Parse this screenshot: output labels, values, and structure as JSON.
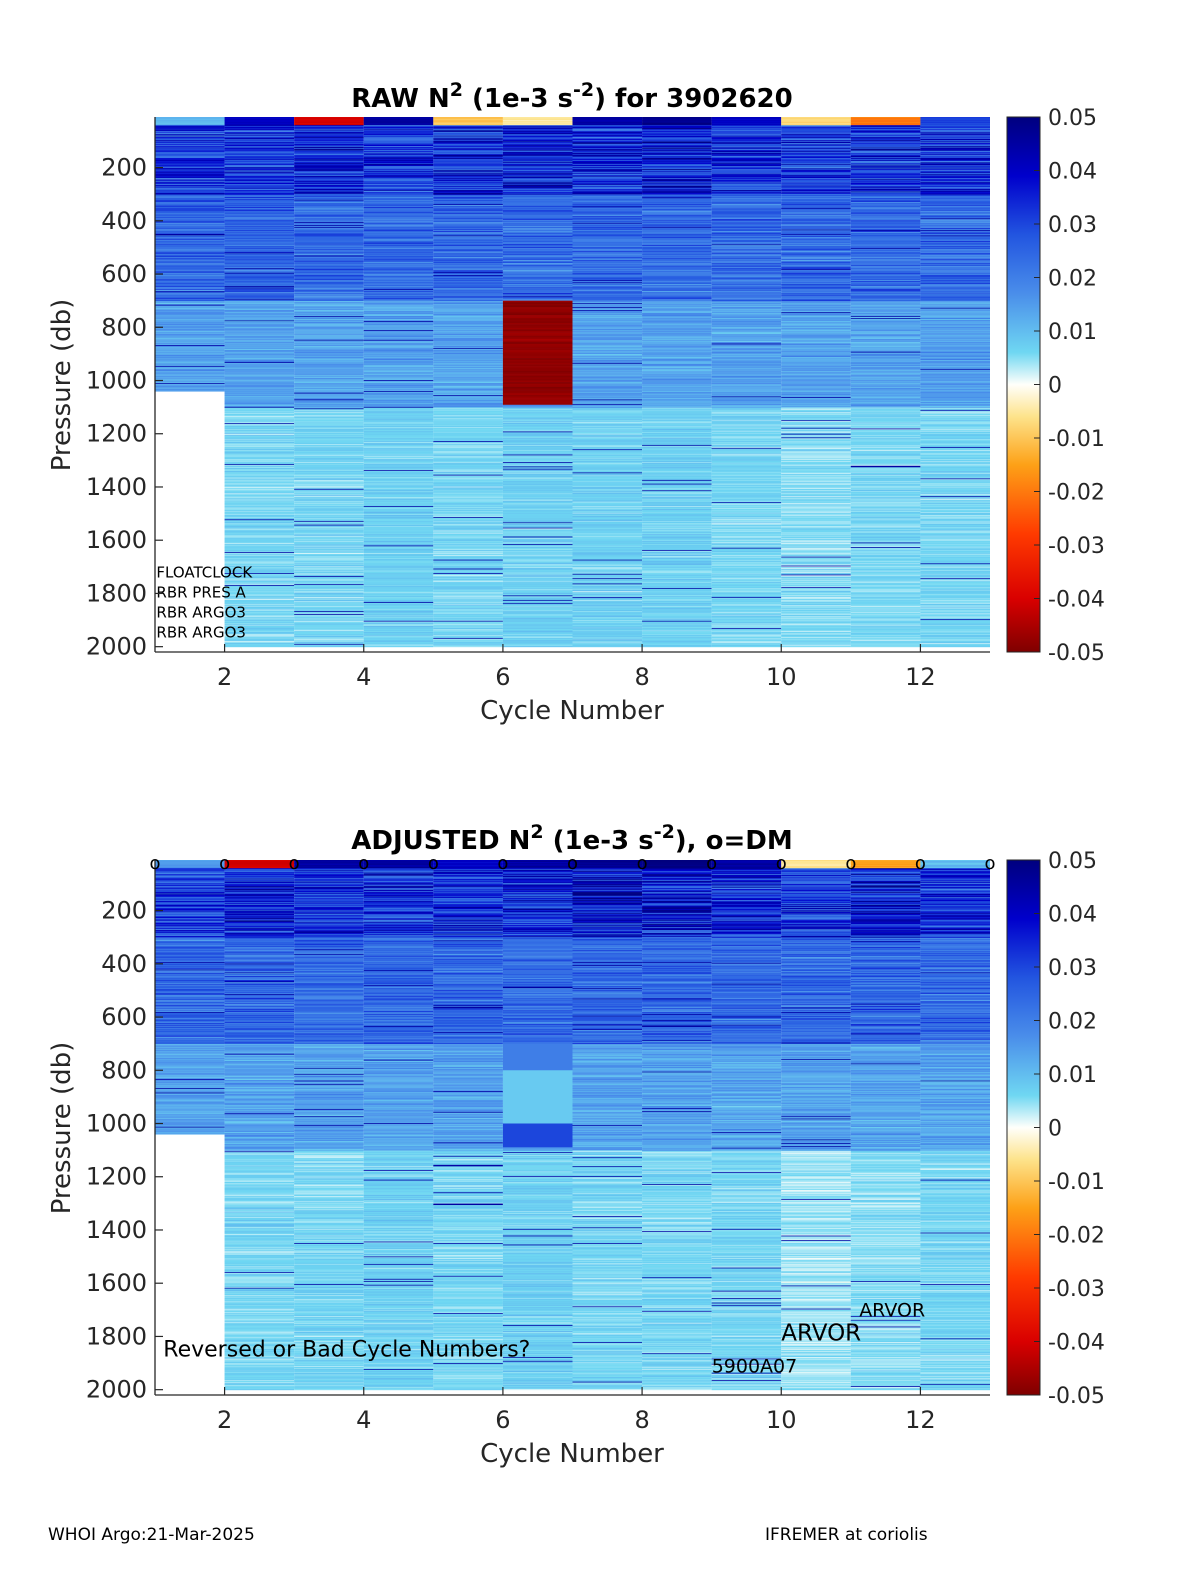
{
  "chart_data": [
    {
      "type": "heatmap",
      "title_parts": {
        "pre": "RAW N",
        "sup1": "2",
        "mid": " (1e-3 s",
        "sup2": "-2",
        "post": ") for 3902620"
      },
      "xlabel": "Cycle Number",
      "ylabel": "Pressure (db)",
      "xlim": [
        1,
        13
      ],
      "ylim": [
        2020,
        10
      ],
      "xticks": [
        "2",
        "4",
        "6",
        "8",
        "10",
        "12"
      ],
      "yticks": [
        "200",
        "400",
        "600",
        "800",
        "1000",
        "1200",
        "1400",
        "1600",
        "1800",
        "2000"
      ],
      "colorbar": {
        "min": -0.05,
        "max": 0.05,
        "ticks": [
          "0.05",
          "0.04",
          "0.03",
          "0.02",
          "0.01",
          "0",
          "-0.01",
          "-0.02",
          "-0.03",
          "-0.04",
          "-0.05"
        ]
      },
      "cycles": [
        {
          "cycle": 1,
          "max_pressure": 1040,
          "surface_value": 0.01,
          "near_surface_value": 0.045,
          "deep_value": 0.008
        },
        {
          "cycle": 2,
          "max_pressure": 2000,
          "surface_value": 0.04,
          "near_surface_value": 0.045,
          "deep_value": 0.006
        },
        {
          "cycle": 3,
          "max_pressure": 2000,
          "surface_value": -0.04,
          "near_surface_value": 0.048,
          "deep_value": 0.006
        },
        {
          "cycle": 4,
          "max_pressure": 2000,
          "surface_value": 0.045,
          "near_surface_value": 0.046,
          "deep_value": 0.007
        },
        {
          "cycle": 5,
          "max_pressure": 2000,
          "surface_value": -0.01,
          "near_surface_value": 0.048,
          "deep_value": 0.006
        },
        {
          "cycle": 6,
          "max_pressure": 2000,
          "surface_value": -0.005,
          "near_surface_value": 0.05,
          "deep_value": 0.007
        },
        {
          "cycle": 7,
          "max_pressure": 2000,
          "surface_value": 0.045,
          "near_surface_value": 0.048,
          "deep_value": 0.007
        },
        {
          "cycle": 8,
          "max_pressure": 2000,
          "surface_value": 0.048,
          "near_surface_value": 0.05,
          "deep_value": 0.007
        },
        {
          "cycle": 9,
          "max_pressure": 2000,
          "surface_value": 0.04,
          "near_surface_value": 0.046,
          "deep_value": 0.006
        },
        {
          "cycle": 10,
          "max_pressure": 2000,
          "surface_value": -0.008,
          "near_surface_value": 0.045,
          "deep_value": 0.005
        },
        {
          "cycle": 11,
          "max_pressure": 2000,
          "surface_value": -0.02,
          "near_surface_value": 0.048,
          "deep_value": 0.006
        },
        {
          "cycle": 12,
          "max_pressure": 2000,
          "surface_value": 0.03,
          "near_surface_value": 0.046,
          "deep_value": 0.006
        }
      ],
      "blocks": [
        {
          "cycle": 6,
          "p_top": 700,
          "p_bottom": 1085,
          "value": -0.048
        }
      ],
      "annotations": [
        {
          "text": "FLOATCLOCK",
          "x": 1.02,
          "y": 1740,
          "size": 15
        },
        {
          "text": "RBR PRES A",
          "x": 1.02,
          "y": 1815,
          "size": 15
        },
        {
          "text": "RBR ARGO3",
          "x": 1.02,
          "y": 1890,
          "size": 15
        },
        {
          "text": "RBR ARGO3",
          "x": 1.02,
          "y": 1965,
          "size": 15
        }
      ],
      "dm_markers": false
    },
    {
      "type": "heatmap",
      "title_parts": {
        "pre": "ADJUSTED N",
        "sup1": "2",
        "mid": " (1e-3 s",
        "sup2": "-2",
        "post": "), o=DM"
      },
      "xlabel": "Cycle Number",
      "ylabel": "Pressure (db)",
      "xlim": [
        1,
        13
      ],
      "ylim": [
        2020,
        10
      ],
      "xticks": [
        "2",
        "4",
        "6",
        "8",
        "10",
        "12"
      ],
      "yticks": [
        "200",
        "400",
        "600",
        "800",
        "1000",
        "1200",
        "1400",
        "1600",
        "1800",
        "2000"
      ],
      "colorbar": {
        "min": -0.05,
        "max": 0.05,
        "ticks": [
          "0.05",
          "0.04",
          "0.03",
          "0.02",
          "0.01",
          "0",
          "-0.01",
          "-0.02",
          "-0.03",
          "-0.04",
          "-0.05"
        ]
      },
      "cycles": [
        {
          "cycle": 1,
          "max_pressure": 1040,
          "surface_value": 0.015,
          "near_surface_value": 0.045,
          "deep_value": 0.008
        },
        {
          "cycle": 2,
          "max_pressure": 2000,
          "surface_value": -0.04,
          "near_surface_value": 0.048,
          "deep_value": 0.006
        },
        {
          "cycle": 3,
          "max_pressure": 2000,
          "surface_value": 0.045,
          "near_surface_value": 0.048,
          "deep_value": 0.006
        },
        {
          "cycle": 4,
          "max_pressure": 2000,
          "surface_value": 0.045,
          "near_surface_value": 0.046,
          "deep_value": 0.007
        },
        {
          "cycle": 5,
          "max_pressure": 2000,
          "surface_value": 0.04,
          "near_surface_value": 0.048,
          "deep_value": 0.006
        },
        {
          "cycle": 6,
          "max_pressure": 2000,
          "surface_value": 0.045,
          "near_surface_value": 0.048,
          "deep_value": 0.007
        },
        {
          "cycle": 7,
          "max_pressure": 2000,
          "surface_value": 0.048,
          "near_surface_value": 0.05,
          "deep_value": 0.006
        },
        {
          "cycle": 8,
          "max_pressure": 2000,
          "surface_value": 0.05,
          "near_surface_value": 0.05,
          "deep_value": 0.006
        },
        {
          "cycle": 9,
          "max_pressure": 2000,
          "surface_value": 0.045,
          "near_surface_value": 0.046,
          "deep_value": 0.006
        },
        {
          "cycle": 10,
          "max_pressure": 2000,
          "surface_value": -0.005,
          "near_surface_value": 0.045,
          "deep_value": 0.004
        },
        {
          "cycle": 11,
          "max_pressure": 2000,
          "surface_value": -0.015,
          "near_surface_value": 0.05,
          "deep_value": 0.005
        },
        {
          "cycle": 12,
          "max_pressure": 2000,
          "surface_value": 0.01,
          "near_surface_value": 0.046,
          "deep_value": 0.006
        }
      ],
      "blocks": [
        {
          "cycle": 6,
          "p_top": 700,
          "p_bottom": 800,
          "value": 0.02
        },
        {
          "cycle": 6,
          "p_top": 800,
          "p_bottom": 1000,
          "value": 0.008
        },
        {
          "cycle": 6,
          "p_top": 1000,
          "p_bottom": 1090,
          "value": 0.03
        }
      ],
      "annotations": [
        {
          "text": "Reversed or Bad Cycle Numbers?",
          "x": 1.12,
          "y": 1875,
          "size": 22
        },
        {
          "text": "ARVOR",
          "x": 11.12,
          "y": 1725,
          "size": 19
        },
        {
          "text": "ARVOR",
          "x": 10.0,
          "y": 1815,
          "size": 23
        },
        {
          "text": "5900A07",
          "x": 9.0,
          "y": 1935,
          "size": 19
        }
      ],
      "dm_markers": true,
      "dm_marker_label": "o",
      "dm_marker_cycles": [
        1,
        2,
        3,
        4,
        5,
        6,
        7,
        8,
        9,
        10,
        11,
        12,
        13
      ]
    }
  ],
  "footer": {
    "left": "WHOI Argo:21-Mar-2025",
    "right": "IFREMER at coriolis"
  }
}
